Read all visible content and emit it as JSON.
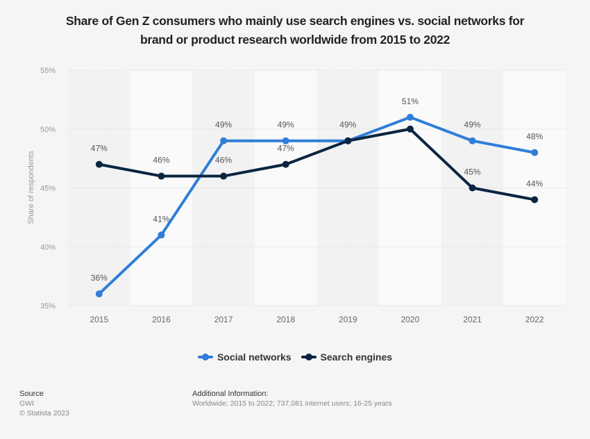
{
  "chart_data": {
    "type": "line",
    "title": "Share of Gen Z consumers who mainly use search engines vs. social networks for brand or product research worldwide from 2015 to 2022",
    "title_lines": [
      "Share of Gen Z consumers who mainly use search engines vs. social networks for",
      "brand or product research worldwide from 2015 to 2022"
    ],
    "xlabel": "",
    "ylabel": "Share of respondents",
    "categories": [
      "2015",
      "2016",
      "2017",
      "2018",
      "2019",
      "2020",
      "2021",
      "2022"
    ],
    "ylim": [
      35,
      55
    ],
    "yticks": [
      35,
      40,
      45,
      50,
      55
    ],
    "ytick_labels": [
      "35%",
      "40%",
      "45%",
      "50%",
      "55%"
    ],
    "grid": true,
    "legend_position": "bottom",
    "series": [
      {
        "name": "Social networks",
        "color": "#2f7ed8",
        "values": [
          36,
          41,
          49,
          49,
          49,
          51,
          49,
          48
        ],
        "labels": [
          "36%",
          "41%",
          "49%",
          "49%",
          "49%",
          "51%",
          "49%",
          "48%"
        ]
      },
      {
        "name": "Search engines",
        "color": "#0b2541",
        "values": [
          47,
          46,
          46,
          47,
          49,
          50,
          45,
          44
        ],
        "labels": [
          "47%",
          "46%",
          "46%",
          "47%",
          "",
          "",
          "45%",
          "44%"
        ]
      }
    ]
  },
  "footer": {
    "source_heading": "Source",
    "source_value": "GWI",
    "copyright": "© Statista 2023",
    "additional_heading": "Additional Information:",
    "additional_value": "Worldwide; 2015 to 2022; 737,081 internet users; 16-25 years"
  }
}
